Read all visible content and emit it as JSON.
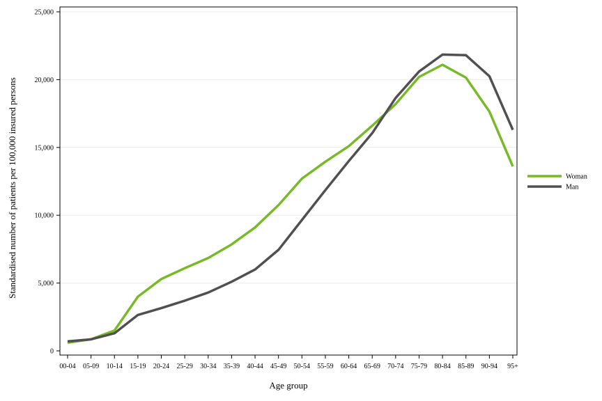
{
  "chart_data": {
    "type": "line",
    "title": "",
    "xlabel": "Age group",
    "ylabel": "Standardised number of patients per 100,000 insured persons",
    "categories": [
      "00-04",
      "05-09",
      "10-14",
      "15-19",
      "20-24",
      "25-29",
      "30-34",
      "35-39",
      "40-44",
      "45-49",
      "50-54",
      "55-59",
      "60-64",
      "65-69",
      "70-74",
      "75-79",
      "80-84",
      "85-89",
      "90-94",
      "95+"
    ],
    "yticks": [
      0,
      5000,
      10000,
      15000,
      20000,
      25000
    ],
    "ytick_labels": [
      "0",
      "5,000",
      "10,000",
      "15,000",
      "20,000",
      "25,000"
    ],
    "ylim": [
      0,
      25000
    ],
    "grid": true,
    "legend_position": "right",
    "series": [
      {
        "name": "Woman",
        "color": "#78b928",
        "values": [
          600,
          850,
          1500,
          4000,
          5300,
          6100,
          6850,
          7850,
          9100,
          10750,
          12700,
          13950,
          15100,
          16600,
          18200,
          20200,
          21100,
          20150,
          17650,
          13600
        ]
      },
      {
        "name": "Man",
        "color": "#505050",
        "values": [
          700,
          850,
          1300,
          2650,
          3150,
          3700,
          4300,
          5100,
          6000,
          7450,
          9650,
          11850,
          14000,
          16050,
          18650,
          20600,
          21850,
          21800,
          20250,
          16300
        ]
      }
    ]
  }
}
